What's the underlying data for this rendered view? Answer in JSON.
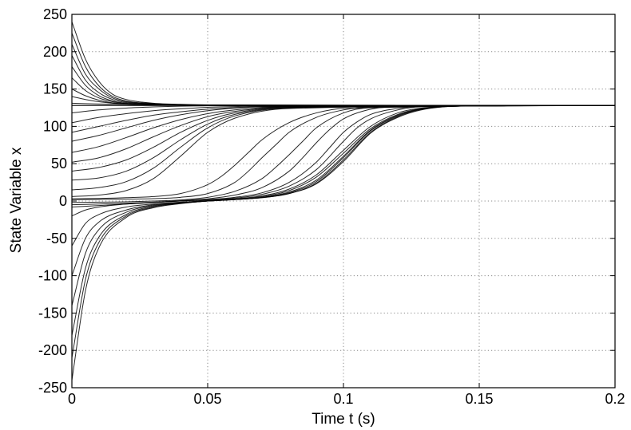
{
  "chart_data": {
    "type": "line",
    "title": "",
    "xlabel": "Time t (s)",
    "ylabel": "State Variable x",
    "xlim": [
      0,
      0.2
    ],
    "ylim": [
      -250,
      250
    ],
    "x_ticks": [
      0,
      0.05,
      0.1,
      0.15,
      0.2
    ],
    "x_tick_labels": [
      "0",
      "0.05",
      "0.1",
      "0.15",
      "0.2"
    ],
    "y_ticks": [
      -250,
      -200,
      -150,
      -100,
      -50,
      0,
      50,
      100,
      150,
      200,
      250
    ],
    "y_tick_labels": [
      "-250",
      "-200",
      "-150",
      "-100",
      "-50",
      "0",
      "50",
      "100",
      "150",
      "200",
      "250"
    ],
    "grid": true,
    "line_color": "#000000",
    "equilibrium": 128,
    "series": [
      {
        "x": [
          0,
          0.005,
          0.01,
          0.015,
          0.02,
          0.03,
          0.04,
          0.06,
          0.2
        ],
        "y": [
          240,
          190,
          160,
          143,
          136,
          131,
          129.5,
          128.5,
          128
        ]
      },
      {
        "x": [
          0,
          0.005,
          0.01,
          0.015,
          0.02,
          0.03,
          0.04,
          0.06,
          0.2
        ],
        "y": [
          225,
          180,
          154,
          140,
          134,
          130.5,
          129,
          128.5,
          128
        ]
      },
      {
        "x": [
          0,
          0.005,
          0.01,
          0.015,
          0.02,
          0.03,
          0.04,
          0.06,
          0.2
        ],
        "y": [
          210,
          170,
          150,
          138,
          133,
          130,
          129,
          128.5,
          128
        ]
      },
      {
        "x": [
          0,
          0.005,
          0.01,
          0.015,
          0.02,
          0.03,
          0.04,
          0.06,
          0.2
        ],
        "y": [
          195,
          162,
          145,
          136,
          132,
          130,
          129,
          128.5,
          128
        ]
      },
      {
        "x": [
          0,
          0.005,
          0.01,
          0.015,
          0.02,
          0.03,
          0.04,
          0.06,
          0.2
        ],
        "y": [
          180,
          155,
          141,
          134,
          131,
          129.5,
          128.8,
          128.3,
          128
        ]
      },
      {
        "x": [
          0,
          0.005,
          0.01,
          0.015,
          0.02,
          0.03,
          0.04,
          0.06,
          0.2
        ],
        "y": [
          165,
          148,
          138,
          133,
          130.5,
          129,
          128.5,
          128.2,
          128
        ]
      },
      {
        "x": [
          0,
          0.005,
          0.01,
          0.015,
          0.02,
          0.03,
          0.04,
          0.06,
          0.2
        ],
        "y": [
          150,
          141,
          135,
          131.5,
          130,
          129,
          128.5,
          128.2,
          128
        ]
      },
      {
        "x": [
          0,
          0.005,
          0.01,
          0.015,
          0.02,
          0.03,
          0.04,
          0.06,
          0.2
        ],
        "y": [
          140,
          136,
          133,
          131,
          129.8,
          128.8,
          128.4,
          128.1,
          128
        ]
      },
      {
        "x": [
          0,
          0.01,
          0.02,
          0.04,
          0.2
        ],
        "y": [
          131,
          130,
          129.5,
          128.5,
          128
        ]
      },
      {
        "x": [
          0,
          0.01,
          0.02,
          0.03,
          0.04,
          0.05,
          0.07,
          0.2
        ],
        "y": [
          118,
          122,
          124.5,
          126,
          127,
          127.5,
          127.8,
          128
        ]
      },
      {
        "x": [
          0,
          0.01,
          0.02,
          0.03,
          0.04,
          0.05,
          0.07,
          0.2
        ],
        "y": [
          105,
          112,
          117,
          121,
          123.5,
          125.5,
          127,
          128
        ]
      },
      {
        "x": [
          0,
          0.01,
          0.02,
          0.03,
          0.04,
          0.05,
          0.07,
          0.2
        ],
        "y": [
          92,
          100,
          108,
          115,
          119.5,
          123,
          126.5,
          128
        ]
      },
      {
        "x": [
          0,
          0.01,
          0.02,
          0.03,
          0.04,
          0.05,
          0.07,
          0.2
        ],
        "y": [
          80,
          88,
          98,
          108,
          115.5,
          121,
          126,
          128
        ]
      },
      {
        "x": [
          0,
          0.01,
          0.02,
          0.03,
          0.04,
          0.05,
          0.06,
          0.08,
          0.2
        ],
        "y": [
          65,
          73,
          85,
          98,
          109,
          117,
          122,
          126.5,
          128
        ]
      },
      {
        "x": [
          0,
          0.01,
          0.02,
          0.03,
          0.04,
          0.05,
          0.06,
          0.08,
          0.2
        ],
        "y": [
          52,
          58,
          70,
          86,
          101,
          113,
          120,
          126,
          128
        ]
      },
      {
        "x": [
          0,
          0.01,
          0.02,
          0.03,
          0.04,
          0.05,
          0.06,
          0.08,
          0.2
        ],
        "y": [
          40,
          45,
          55,
          72,
          92,
          108,
          118,
          125.5,
          128
        ]
      },
      {
        "x": [
          0,
          0.01,
          0.02,
          0.03,
          0.04,
          0.05,
          0.06,
          0.08,
          0.2
        ],
        "y": [
          28,
          31,
          40,
          58,
          82,
          103,
          116,
          125,
          128
        ]
      },
      {
        "x": [
          0,
          0.01,
          0.02,
          0.03,
          0.04,
          0.05,
          0.06,
          0.08,
          0.2
        ],
        "y": [
          15,
          18,
          26,
          44,
          72,
          98,
          114,
          124.5,
          128
        ]
      },
      {
        "x": [
          0,
          0.01,
          0.02,
          0.03,
          0.04,
          0.05,
          0.06,
          0.08,
          0.2
        ],
        "y": [
          6,
          8,
          14,
          30,
          60,
          92,
          111,
          124,
          128
        ]
      },
      {
        "x": [
          0,
          0.01,
          0.02,
          0.03,
          0.04,
          0.05,
          0.055,
          0.06,
          0.065,
          0.07,
          0.08,
          0.09,
          0.1,
          0.2
        ],
        "y": [
          3,
          3.5,
          4.5,
          6,
          10,
          22,
          33,
          48,
          65,
          82,
          105,
          118,
          124,
          128
        ]
      },
      {
        "x": [
          0,
          0.01,
          0.02,
          0.03,
          0.04,
          0.05,
          0.06,
          0.065,
          0.07,
          0.075,
          0.08,
          0.09,
          0.1,
          0.11,
          0.2
        ],
        "y": [
          2,
          2.2,
          2.6,
          3.2,
          5,
          10,
          25,
          40,
          58,
          75,
          92,
          112,
          122,
          126,
          128
        ]
      },
      {
        "x": [
          0,
          0.01,
          0.02,
          0.03,
          0.04,
          0.05,
          0.06,
          0.07,
          0.075,
          0.08,
          0.085,
          0.09,
          0.1,
          0.11,
          0.2
        ],
        "y": [
          -2,
          -1.5,
          -1,
          0,
          1.5,
          5,
          13,
          30,
          45,
          62,
          80,
          98,
          118,
          125,
          128
        ]
      },
      {
        "x": [
          0,
          0.01,
          0.02,
          0.03,
          0.04,
          0.05,
          0.06,
          0.07,
          0.08,
          0.085,
          0.09,
          0.095,
          0.1,
          0.11,
          0.12,
          0.2
        ],
        "y": [
          -5,
          -4,
          -3,
          -1.5,
          0.5,
          3,
          8,
          18,
          40,
          58,
          78,
          96,
          110,
          123,
          126.5,
          128
        ]
      },
      {
        "x": [
          0,
          0.01,
          0.02,
          0.03,
          0.04,
          0.05,
          0.06,
          0.07,
          0.08,
          0.09,
          0.095,
          0.1,
          0.105,
          0.11,
          0.12,
          0.13,
          0.2
        ],
        "y": [
          -8,
          -6,
          -4,
          -2,
          0,
          2,
          5,
          11,
          25,
          52,
          72,
          92,
          106,
          116,
          124,
          127,
          128
        ]
      },
      {
        "x": [
          0,
          0.005,
          0.01,
          0.02,
          0.03,
          0.04,
          0.05,
          0.06,
          0.07,
          0.08,
          0.09,
          0.1,
          0.105,
          0.11,
          0.12,
          0.13,
          0.2
        ],
        "y": [
          -20,
          -12,
          -8,
          -4,
          -2,
          0,
          1.5,
          4,
          9,
          20,
          42,
          80,
          98,
          110,
          122,
          126.5,
          128
        ]
      },
      {
        "x": [
          0,
          0.005,
          0.01,
          0.02,
          0.03,
          0.04,
          0.05,
          0.06,
          0.07,
          0.08,
          0.09,
          0.1,
          0.11,
          0.12,
          0.13,
          0.15,
          0.2
        ],
        "y": [
          -60,
          -30,
          -18,
          -8,
          -4,
          -1.5,
          0.5,
          3,
          7,
          16,
          35,
          68,
          100,
          118,
          125,
          127.5,
          128
        ]
      },
      {
        "x": [
          0,
          0.005,
          0.01,
          0.02,
          0.03,
          0.04,
          0.05,
          0.06,
          0.07,
          0.08,
          0.09,
          0.1,
          0.11,
          0.12,
          0.13,
          0.15,
          0.2
        ],
        "y": [
          -100,
          -50,
          -28,
          -12,
          -5,
          -2,
          0.5,
          2.5,
          6,
          14,
          32,
          64,
          97,
          116,
          124.5,
          127.5,
          128
        ]
      },
      {
        "x": [
          0,
          0.005,
          0.01,
          0.02,
          0.03,
          0.04,
          0.05,
          0.06,
          0.07,
          0.08,
          0.09,
          0.1,
          0.11,
          0.12,
          0.13,
          0.15,
          0.2
        ],
        "y": [
          -140,
          -70,
          -38,
          -15,
          -6,
          -2.5,
          0,
          2,
          5,
          12,
          28,
          60,
          95,
          115,
          124,
          127.5,
          128
        ]
      },
      {
        "x": [
          0,
          0.005,
          0.01,
          0.02,
          0.03,
          0.04,
          0.05,
          0.06,
          0.07,
          0.08,
          0.09,
          0.1,
          0.11,
          0.12,
          0.13,
          0.15,
          0.2
        ],
        "y": [
          -180,
          -90,
          -48,
          -18,
          -7,
          -3,
          0,
          2,
          5,
          11,
          26,
          58,
          94,
          114,
          124,
          127.5,
          128
        ]
      },
      {
        "x": [
          0,
          0.005,
          0.01,
          0.02,
          0.03,
          0.04,
          0.05,
          0.06,
          0.07,
          0.08,
          0.09,
          0.1,
          0.11,
          0.12,
          0.13,
          0.15,
          0.2
        ],
        "y": [
          -210,
          -105,
          -55,
          -20,
          -8,
          -3,
          0,
          2,
          4.5,
          10,
          24,
          55,
          92,
          113,
          123.5,
          127.5,
          128
        ]
      },
      {
        "x": [
          0,
          0.005,
          0.01,
          0.02,
          0.03,
          0.04,
          0.05,
          0.06,
          0.07,
          0.08,
          0.09,
          0.1,
          0.11,
          0.12,
          0.13,
          0.15,
          0.2
        ],
        "y": [
          -240,
          -120,
          -62,
          -22,
          -9,
          -3.5,
          0,
          2,
          4.5,
          10,
          23,
          53,
          91,
          112,
          123,
          127.5,
          128
        ]
      }
    ]
  }
}
